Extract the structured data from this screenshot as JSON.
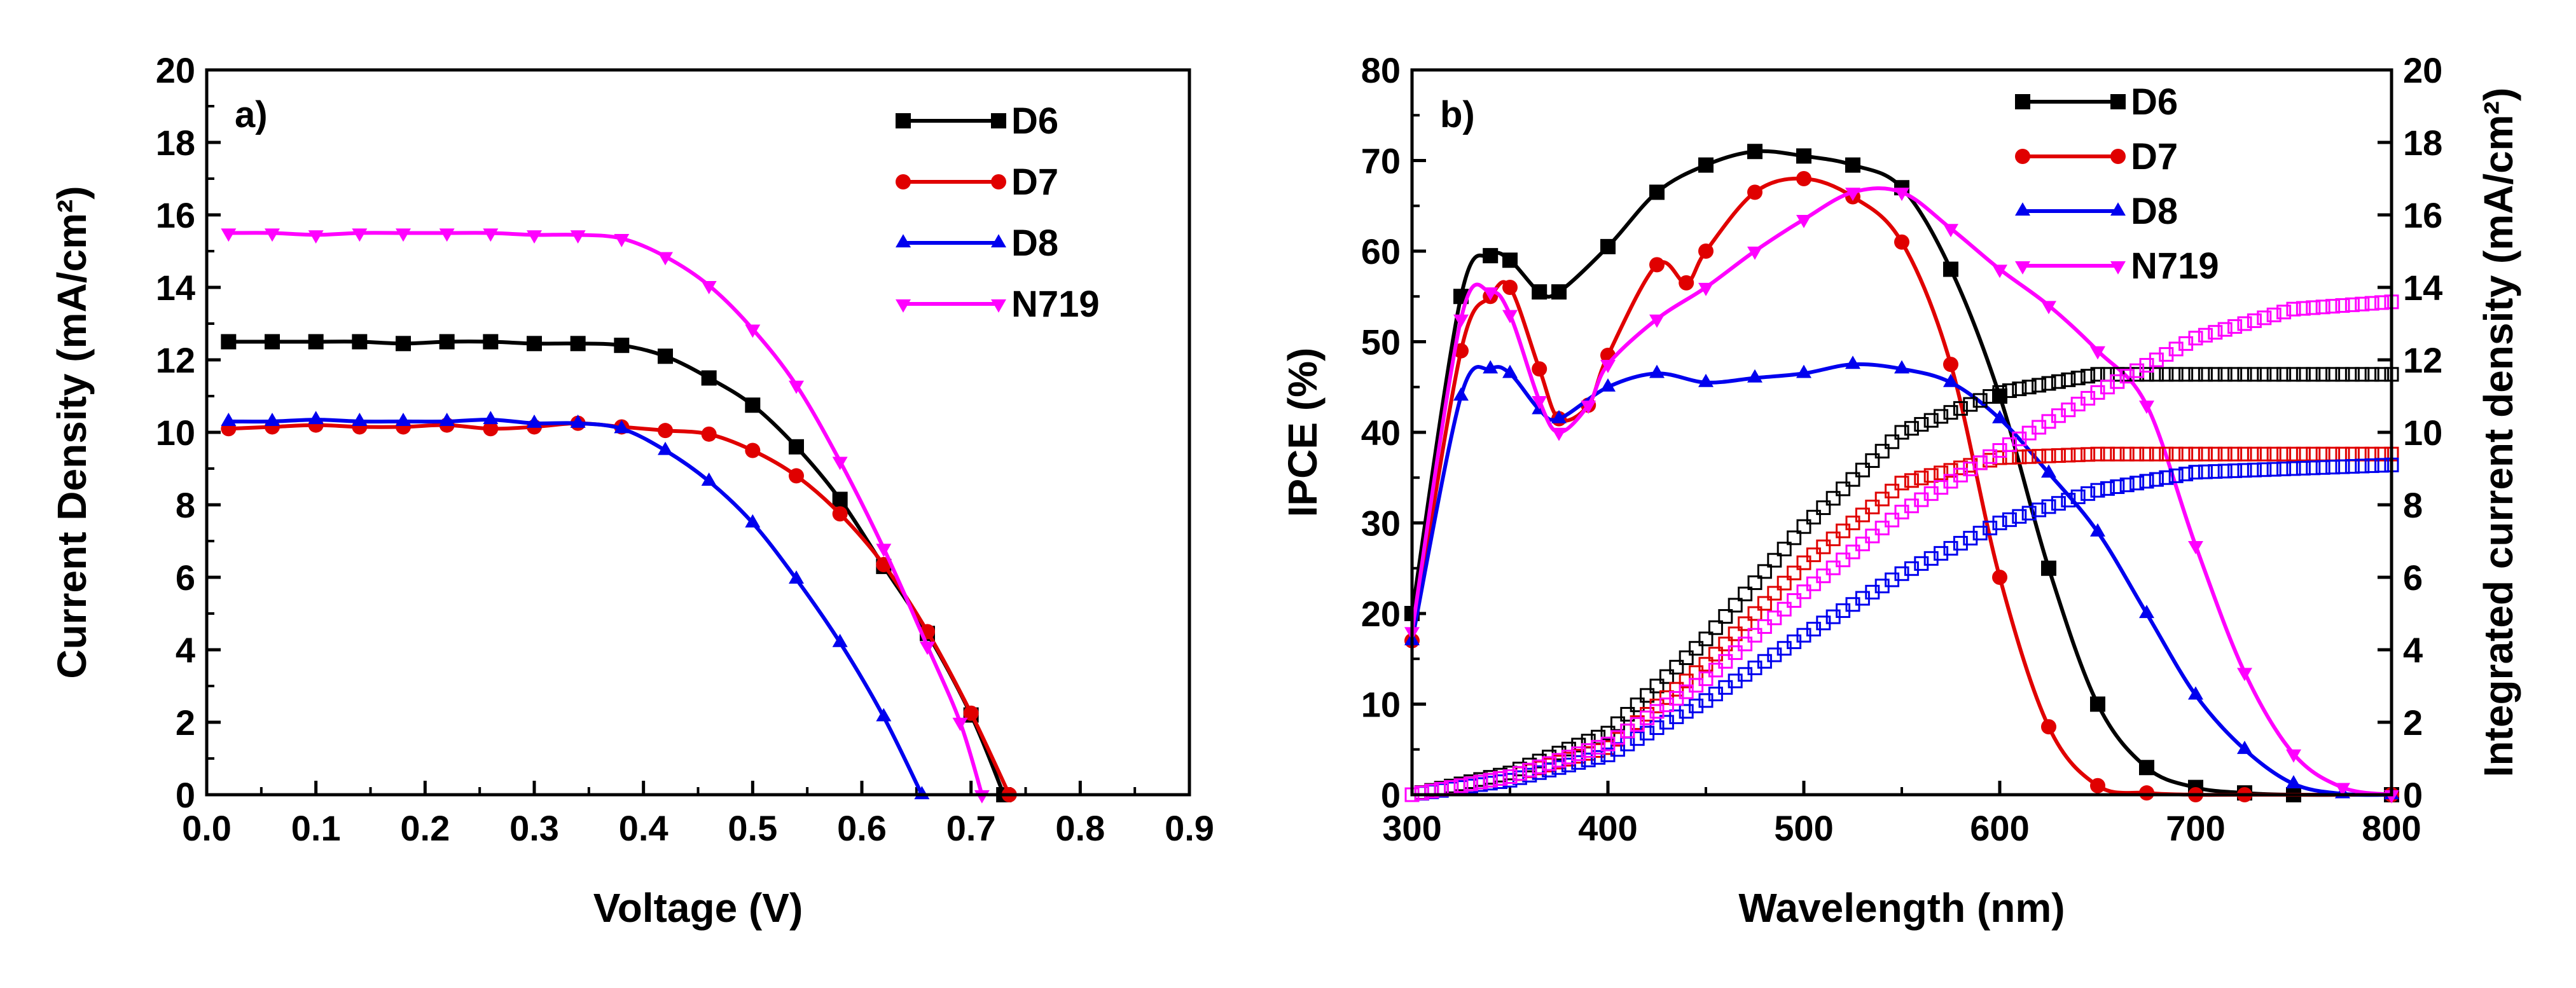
{
  "chart_data": [
    {
      "type": "line",
      "panel_label": "a)",
      "xlabel": "Voltage (V)",
      "ylabel": "Current Density (mA/cm²)",
      "xlim": [
        0,
        0.9
      ],
      "ylim": [
        0,
        20
      ],
      "x_ticks": [
        "0.0",
        "0.1",
        "0.2",
        "0.3",
        "0.4",
        "0.5",
        "0.6",
        "0.7",
        "0.8",
        "0.9"
      ],
      "y_ticks": [
        "0",
        "2",
        "4",
        "6",
        "8",
        "10",
        "12",
        "14",
        "16",
        "18",
        "20"
      ],
      "legend_position": "top-right",
      "series": [
        {
          "name": "D6",
          "color": "#000000",
          "marker": "square",
          "points": [
            [
              0.02,
              12.5
            ],
            [
              0.06,
              12.5
            ],
            [
              0.1,
              12.5
            ],
            [
              0.14,
              12.5
            ],
            [
              0.18,
              12.45
            ],
            [
              0.22,
              12.5
            ],
            [
              0.26,
              12.5
            ],
            [
              0.3,
              12.45
            ],
            [
              0.34,
              12.45
            ],
            [
              0.38,
              12.4
            ],
            [
              0.42,
              12.1
            ],
            [
              0.46,
              11.5
            ],
            [
              0.5,
              10.75
            ],
            [
              0.54,
              9.6
            ],
            [
              0.58,
              8.15
            ],
            [
              0.62,
              6.3
            ],
            [
              0.66,
              4.45
            ],
            [
              0.7,
              2.2
            ],
            [
              0.73,
              0
            ]
          ]
        },
        {
          "name": "D7",
          "color": "#e00000",
          "marker": "circle",
          "points": [
            [
              0.02,
              10.1
            ],
            [
              0.06,
              10.15
            ],
            [
              0.1,
              10.2
            ],
            [
              0.14,
              10.15
            ],
            [
              0.18,
              10.15
            ],
            [
              0.22,
              10.2
            ],
            [
              0.26,
              10.1
            ],
            [
              0.3,
              10.15
            ],
            [
              0.34,
              10.25
            ],
            [
              0.38,
              10.15
            ],
            [
              0.42,
              10.05
            ],
            [
              0.46,
              9.95
            ],
            [
              0.5,
              9.5
            ],
            [
              0.54,
              8.8
            ],
            [
              0.58,
              7.75
            ],
            [
              0.62,
              6.35
            ],
            [
              0.66,
              4.5
            ],
            [
              0.7,
              2.25
            ],
            [
              0.735,
              0
            ]
          ]
        },
        {
          "name": "D8",
          "color": "#0000ee",
          "marker": "triangle-up",
          "points": [
            [
              0.02,
              10.3
            ],
            [
              0.06,
              10.3
            ],
            [
              0.1,
              10.35
            ],
            [
              0.14,
              10.3
            ],
            [
              0.18,
              10.3
            ],
            [
              0.22,
              10.3
            ],
            [
              0.26,
              10.35
            ],
            [
              0.3,
              10.25
            ],
            [
              0.34,
              10.25
            ],
            [
              0.38,
              10.1
            ],
            [
              0.42,
              9.5
            ],
            [
              0.46,
              8.65
            ],
            [
              0.5,
              7.5
            ],
            [
              0.54,
              5.95
            ],
            [
              0.58,
              4.2
            ],
            [
              0.62,
              2.15
            ],
            [
              0.655,
              0
            ]
          ]
        },
        {
          "name": "N719",
          "color": "#ff00ff",
          "marker": "triangle-down",
          "points": [
            [
              0.02,
              15.5
            ],
            [
              0.06,
              15.5
            ],
            [
              0.1,
              15.45
            ],
            [
              0.14,
              15.5
            ],
            [
              0.18,
              15.5
            ],
            [
              0.22,
              15.5
            ],
            [
              0.26,
              15.5
            ],
            [
              0.3,
              15.45
            ],
            [
              0.34,
              15.45
            ],
            [
              0.38,
              15.35
            ],
            [
              0.42,
              14.85
            ],
            [
              0.46,
              14.05
            ],
            [
              0.5,
              12.85
            ],
            [
              0.54,
              11.3
            ],
            [
              0.58,
              9.2
            ],
            [
              0.62,
              6.8
            ],
            [
              0.66,
              4.1
            ],
            [
              0.69,
              2.0
            ],
            [
              0.71,
              0
            ]
          ]
        }
      ]
    },
    {
      "type": "line",
      "panel_label": "b)",
      "xlabel": "Wavelength (nm)",
      "ylabel": "IPCE (%)",
      "y2label": "Integrated current density (mA/cm²)",
      "xlim": [
        300,
        800
      ],
      "ylim": [
        0,
        80
      ],
      "y2lim": [
        0,
        20
      ],
      "x_ticks": [
        "300",
        "400",
        "500",
        "600",
        "700",
        "800"
      ],
      "y_ticks": [
        "0",
        "10",
        "20",
        "30",
        "40",
        "50",
        "60",
        "70",
        "80"
      ],
      "y2_ticks": [
        "0",
        "2",
        "4",
        "6",
        "8",
        "10",
        "12",
        "14",
        "16",
        "18",
        "20"
      ],
      "legend_position": "top-right",
      "series": [
        {
          "name": "D6",
          "color": "#000000",
          "marker": "square",
          "axis": "left",
          "points": [
            [
              300,
              20
            ],
            [
              325,
              55
            ],
            [
              340,
              59.5
            ],
            [
              350,
              59
            ],
            [
              365,
              55.5
            ],
            [
              375,
              55.5
            ],
            [
              400,
              60.5
            ],
            [
              425,
              66.5
            ],
            [
              450,
              69.5
            ],
            [
              475,
              71
            ],
            [
              500,
              70.5
            ],
            [
              525,
              69.5
            ],
            [
              550,
              67
            ],
            [
              575,
              58
            ],
            [
              600,
              44
            ],
            [
              625,
              25
            ],
            [
              650,
              10
            ],
            [
              675,
              3
            ],
            [
              700,
              0.8
            ],
            [
              725,
              0.2
            ],
            [
              750,
              0
            ],
            [
              800,
              0
            ]
          ]
        },
        {
          "name": "D7",
          "color": "#e00000",
          "marker": "circle",
          "axis": "left",
          "points": [
            [
              300,
              17
            ],
            [
              325,
              49
            ],
            [
              340,
              55
            ],
            [
              350,
              56
            ],
            [
              365,
              47
            ],
            [
              375,
              41.5
            ],
            [
              390,
              43
            ],
            [
              400,
              48.5
            ],
            [
              425,
              58.5
            ],
            [
              440,
              56.5
            ],
            [
              450,
              60
            ],
            [
              475,
              66.5
            ],
            [
              500,
              68
            ],
            [
              525,
              66
            ],
            [
              550,
              61
            ],
            [
              575,
              47.5
            ],
            [
              600,
              24
            ],
            [
              625,
              7.5
            ],
            [
              650,
              1
            ],
            [
              675,
              0.2
            ],
            [
              700,
              0
            ],
            [
              725,
              0
            ],
            [
              800,
              0
            ]
          ]
        },
        {
          "name": "D8",
          "color": "#0000ee",
          "marker": "triangle-up",
          "axis": "left",
          "points": [
            [
              300,
              17
            ],
            [
              325,
              44
            ],
            [
              340,
              47
            ],
            [
              350,
              46.5
            ],
            [
              365,
              42.5
            ],
            [
              375,
              41.5
            ],
            [
              400,
              45
            ],
            [
              425,
              46.5
            ],
            [
              450,
              45.5
            ],
            [
              475,
              46
            ],
            [
              500,
              46.5
            ],
            [
              525,
              47.5
            ],
            [
              550,
              47
            ],
            [
              575,
              45.5
            ],
            [
              600,
              41.5
            ],
            [
              625,
              35.5
            ],
            [
              650,
              29
            ],
            [
              675,
              20
            ],
            [
              700,
              11
            ],
            [
              725,
              5
            ],
            [
              750,
              1.2
            ],
            [
              775,
              0.1
            ],
            [
              800,
              0
            ]
          ]
        },
        {
          "name": "N719",
          "color": "#ff00ff",
          "marker": "triangle-down",
          "axis": "left",
          "points": [
            [
              300,
              18
            ],
            [
              325,
              52.5
            ],
            [
              340,
              55.5
            ],
            [
              350,
              53
            ],
            [
              365,
              43.5
            ],
            [
              375,
              40
            ],
            [
              390,
              43
            ],
            [
              400,
              47.5
            ],
            [
              425,
              52.5
            ],
            [
              450,
              56
            ],
            [
              475,
              60
            ],
            [
              500,
              63.5
            ],
            [
              525,
              66.5
            ],
            [
              550,
              66.5
            ],
            [
              575,
              62.5
            ],
            [
              600,
              58
            ],
            [
              625,
              54
            ],
            [
              650,
              49
            ],
            [
              675,
              43
            ],
            [
              700,
              27.5
            ],
            [
              725,
              13.5
            ],
            [
              750,
              4.5
            ],
            [
              775,
              0.8
            ],
            [
              800,
              0
            ]
          ]
        },
        {
          "name": "D6 integrated",
          "color": "#000000",
          "marker": "open-square",
          "axis": "right",
          "points": [
            [
              300,
              0
            ],
            [
              350,
              0.6
            ],
            [
              400,
              1.7
            ],
            [
              450,
              4.3
            ],
            [
              500,
              7.4
            ],
            [
              550,
              10.0
            ],
            [
              600,
              11.1
            ],
            [
              650,
              11.6
            ],
            [
              700,
              11.6
            ],
            [
              800,
              11.6
            ]
          ]
        },
        {
          "name": "D7 integrated",
          "color": "#e00000",
          "marker": "open-square",
          "axis": "right",
          "points": [
            [
              300,
              0
            ],
            [
              350,
              0.5
            ],
            [
              400,
              1.3
            ],
            [
              450,
              3.6
            ],
            [
              500,
              6.4
            ],
            [
              550,
              8.6
            ],
            [
              600,
              9.3
            ],
            [
              650,
              9.4
            ],
            [
              700,
              9.4
            ],
            [
              800,
              9.4
            ]
          ]
        },
        {
          "name": "D8 integrated",
          "color": "#0000ee",
          "marker": "open-square",
          "axis": "right",
          "points": [
            [
              300,
              0
            ],
            [
              350,
              0.4
            ],
            [
              400,
              1.1
            ],
            [
              450,
              2.6
            ],
            [
              500,
              4.4
            ],
            [
              550,
              6.1
            ],
            [
              600,
              7.5
            ],
            [
              650,
              8.4
            ],
            [
              700,
              8.9
            ],
            [
              750,
              9.0
            ],
            [
              800,
              9.1
            ]
          ]
        },
        {
          "name": "N719 integrated",
          "color": "#ff00ff",
          "marker": "open-square",
          "axis": "right",
          "points": [
            [
              300,
              0
            ],
            [
              350,
              0.5
            ],
            [
              400,
              1.4
            ],
            [
              450,
              3.2
            ],
            [
              500,
              5.6
            ],
            [
              550,
              7.8
            ],
            [
              600,
              9.5
            ],
            [
              650,
              11.1
            ],
            [
              700,
              12.6
            ],
            [
              750,
              13.4
            ],
            [
              800,
              13.6
            ]
          ]
        }
      ]
    }
  ]
}
